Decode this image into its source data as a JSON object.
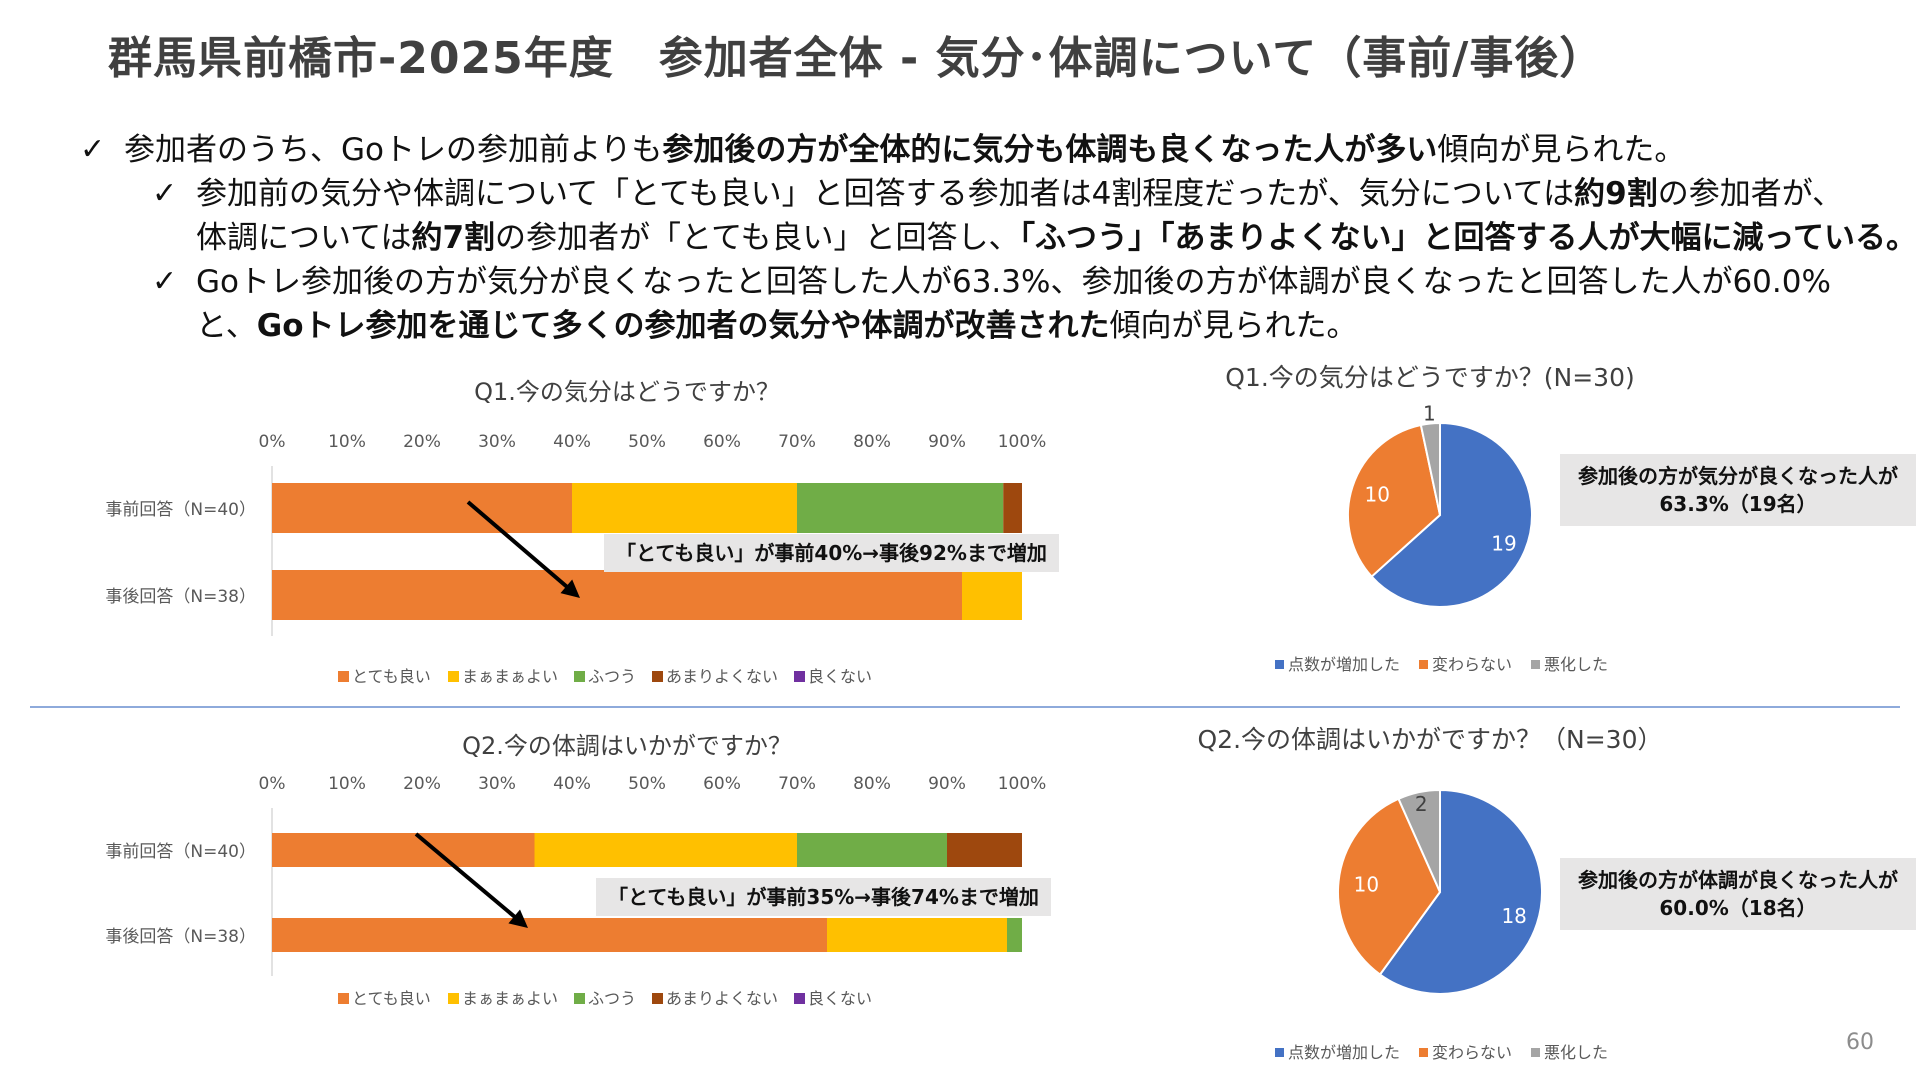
{
  "page_title": "群馬県前橋市-2025年度　参加者全体 - 気分･体調について（事前/事後）",
  "check_glyph": "✓",
  "page_number": "60",
  "bullets": {
    "b1": {
      "t1": "参加者のうち、Goトレの参加前よりも",
      "b1": "参加後の方が全体的に気分も体調も良くなった人が多い",
      "t2": "傾向が見られた。"
    },
    "b2": {
      "t1": "参加前の気分や体調について「とても良い」と回答する参加者は4割程度だったが、気分については",
      "b1": "約9割",
      "t2": "の参加者が、"
    },
    "b2c": {
      "t1": "体調については",
      "b1": "約7割",
      "t2": "の参加者が「とても良い」と回答し、",
      "b2": "「ふつう」「あまりよくない」と回答する人が大幅に減っている。"
    },
    "b3": {
      "t1": "Goトレ参加後の方が気分が良くなったと回答した人が63.3%、参加後の方が体調が良くなったと回答した人が60.0%"
    },
    "b3c": {
      "t1": "と、",
      "b1": "Goトレ参加を通じて多くの参加者の気分や体調が改善された",
      "t2": "傾向が見られた。"
    }
  },
  "callouts": {
    "q1_bar": "「とても良い」が事前40%→事後92%まで増加",
    "q2_bar": "「とても良い」が事前35%→事後74%まで増加",
    "q1_pie": [
      "参加後の方が気分が良くなった人が",
      "63.3%（19名）"
    ],
    "q2_pie": [
      "参加後の方が体調が良くなった人が",
      "60.0%（18名）"
    ]
  },
  "chart_data": [
    {
      "type": "bar",
      "orientation": "horizontal-stacked-100",
      "title": "Q1.今の気分はどうですか？",
      "x_ticks": [
        "0%",
        "10%",
        "20%",
        "30%",
        "40%",
        "50%",
        "60%",
        "70%",
        "80%",
        "90%",
        "100%"
      ],
      "xlim": [
        0,
        100
      ],
      "categories": [
        "事前回答（N=40）",
        "事後回答（N=38）"
      ],
      "series": [
        {
          "name": "とても良い",
          "color": "#ed7d31",
          "values": [
            40,
            92
          ]
        },
        {
          "name": "まぁまぁよい",
          "color": "#ffc000",
          "values": [
            30,
            8
          ]
        },
        {
          "name": "ふつう",
          "color": "#70ad47",
          "values": [
            27.5,
            0
          ]
        },
        {
          "name": "あまりよくない",
          "color": "#9e480e",
          "values": [
            2.5,
            0
          ]
        },
        {
          "name": "良くない",
          "color": "#7030a0",
          "values": [
            0,
            0
          ]
        }
      ],
      "legend_position": "bottom"
    },
    {
      "type": "pie",
      "title": "Q1.今の気分はどうですか？(N=30)",
      "labels": [
        "点数が増加した",
        "変わらない",
        "悪化した"
      ],
      "values": [
        19,
        10,
        1
      ],
      "colors": [
        "#4472c4",
        "#ed7d31",
        "#a5a5a5"
      ],
      "legend_position": "bottom"
    },
    {
      "type": "bar",
      "orientation": "horizontal-stacked-100",
      "title": "Q2.今の体調はいかがですか？",
      "x_ticks": [
        "0%",
        "10%",
        "20%",
        "30%",
        "40%",
        "50%",
        "60%",
        "70%",
        "80%",
        "90%",
        "100%"
      ],
      "xlim": [
        0,
        100
      ],
      "categories": [
        "事前回答（N=40）",
        "事後回答（N=38）"
      ],
      "series": [
        {
          "name": "とても良い",
          "color": "#ed7d31",
          "values": [
            35,
            74
          ]
        },
        {
          "name": "まぁまぁよい",
          "color": "#ffc000",
          "values": [
            35,
            24
          ]
        },
        {
          "name": "ふつう",
          "color": "#70ad47",
          "values": [
            20,
            2
          ]
        },
        {
          "name": "あまりよくない",
          "color": "#9e480e",
          "values": [
            10,
            0
          ]
        },
        {
          "name": "良くない",
          "color": "#7030a0",
          "values": [
            0,
            0
          ]
        }
      ],
      "legend_position": "bottom"
    },
    {
      "type": "pie",
      "title": "Q2.今の体調はいかがですか？（N=30）",
      "labels": [
        "点数が増加した",
        "変わらない",
        "悪化した"
      ],
      "values": [
        18,
        10,
        2
      ],
      "colors": [
        "#4472c4",
        "#ed7d31",
        "#a5a5a5"
      ],
      "legend_position": "bottom"
    }
  ]
}
